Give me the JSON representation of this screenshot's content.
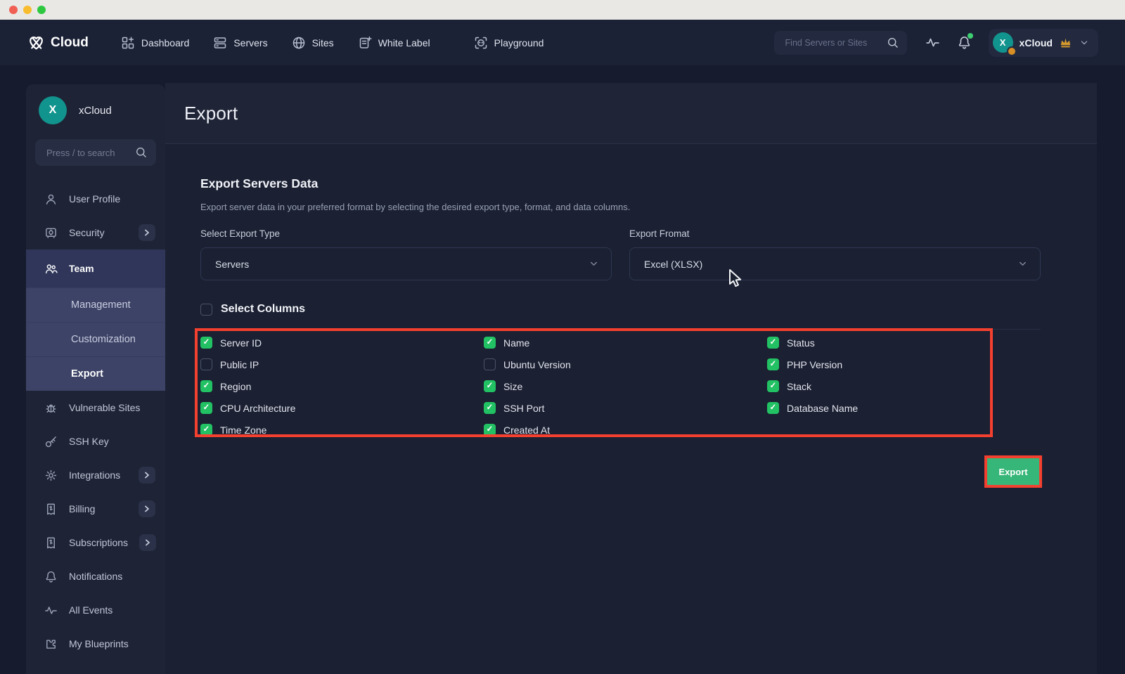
{
  "window": {
    "traffic_lights": [
      "close",
      "minimize",
      "zoom"
    ]
  },
  "topbar": {
    "brand": {
      "name": "Cloud",
      "logo_icon": "xcloud-logo"
    },
    "nav": [
      {
        "label": "Dashboard",
        "icon": "dashboard-icon"
      },
      {
        "label": "Servers",
        "icon": "servers-icon"
      },
      {
        "label": "Sites",
        "icon": "sites-icon"
      },
      {
        "label": "White Label",
        "icon": "white-label-icon"
      },
      {
        "label": "Playground",
        "icon": "playground-icon",
        "spaced": true
      }
    ],
    "search": {
      "placeholder": "Find Servers or Sites",
      "icon": "search-icon"
    },
    "activity_icon": "activity-icon",
    "notifications": {
      "icon": "bell-icon",
      "badge_color": "#3ECF71"
    },
    "user": {
      "avatar_letter": "X",
      "name": "xCloud",
      "crown_icon": "crown-icon",
      "chevron_icon": "chevron-down-icon"
    }
  },
  "sidebar": {
    "workspace": {
      "avatar_letter": "X",
      "name": "xCloud"
    },
    "search": {
      "placeholder": "Press / to search",
      "icon": "search-icon"
    },
    "menu": [
      {
        "id": "user-profile",
        "label": "User Profile",
        "icon": "user-icon"
      },
      {
        "id": "security",
        "label": "Security",
        "icon": "security-icon",
        "chevron": true
      },
      {
        "id": "team",
        "label": "Team",
        "icon": "team-icon",
        "active": true,
        "children": [
          {
            "id": "management",
            "label": "Management"
          },
          {
            "id": "customization",
            "label": "Customization"
          },
          {
            "id": "export",
            "label": "Export",
            "active": true
          }
        ]
      },
      {
        "id": "vulnerable-sites",
        "label": "Vulnerable Sites",
        "icon": "bug-icon"
      },
      {
        "id": "ssh-key",
        "label": "SSH Key",
        "icon": "key-icon"
      },
      {
        "id": "integrations",
        "label": "Integrations",
        "icon": "gear-icon",
        "chevron": true
      },
      {
        "id": "billing",
        "label": "Billing",
        "icon": "receipt-icon",
        "chevron": true
      },
      {
        "id": "subscriptions",
        "label": "Subscriptions",
        "icon": "receipt-icon",
        "chevron": true
      },
      {
        "id": "notifications",
        "label": "Notifications",
        "icon": "bell-icon"
      },
      {
        "id": "all-events",
        "label": "All Events",
        "icon": "activity-icon"
      },
      {
        "id": "my-blueprints",
        "label": "My Blueprints",
        "icon": "puzzle-icon"
      }
    ]
  },
  "page": {
    "title": "Export",
    "section": {
      "title": "Export Servers Data",
      "description": "Export server data in your preferred format by selecting the desired export type, format, and data columns."
    },
    "export_type": {
      "label": "Select Export Type",
      "value": "Servers"
    },
    "export_format": {
      "label": "Export Fromat",
      "value": "Excel (XLSX)"
    },
    "select_columns": {
      "label": "Select Columns",
      "checked": false
    },
    "columns_grid": [
      [
        {
          "label": "Server ID",
          "checked": true
        },
        {
          "label": "Public IP",
          "checked": false
        },
        {
          "label": "Region",
          "checked": true
        },
        {
          "label": "CPU Architecture",
          "checked": true
        },
        {
          "label": "Time Zone",
          "checked": true
        }
      ],
      [
        {
          "label": "Name",
          "checked": true
        },
        {
          "label": "Ubuntu Version",
          "checked": false
        },
        {
          "label": "Size",
          "checked": true
        },
        {
          "label": "SSH Port",
          "checked": true
        },
        {
          "label": "Created At",
          "checked": true
        }
      ],
      [
        {
          "label": "Status",
          "checked": true
        },
        {
          "label": "PHP Version",
          "checked": true
        },
        {
          "label": "Stack",
          "checked": true
        },
        {
          "label": "Database Name",
          "checked": true
        }
      ]
    ],
    "export_button": {
      "label": "Export"
    }
  },
  "colors": {
    "annotation_red": "#F4402F",
    "checkbox_green": "#22C163",
    "button_green": "#36B678",
    "avatar_teal": "#12948E",
    "crown_gold": "#D69A2D",
    "bell_badge_green": "#3ECF71",
    "avatar_badge_orange": "#D98E26"
  }
}
